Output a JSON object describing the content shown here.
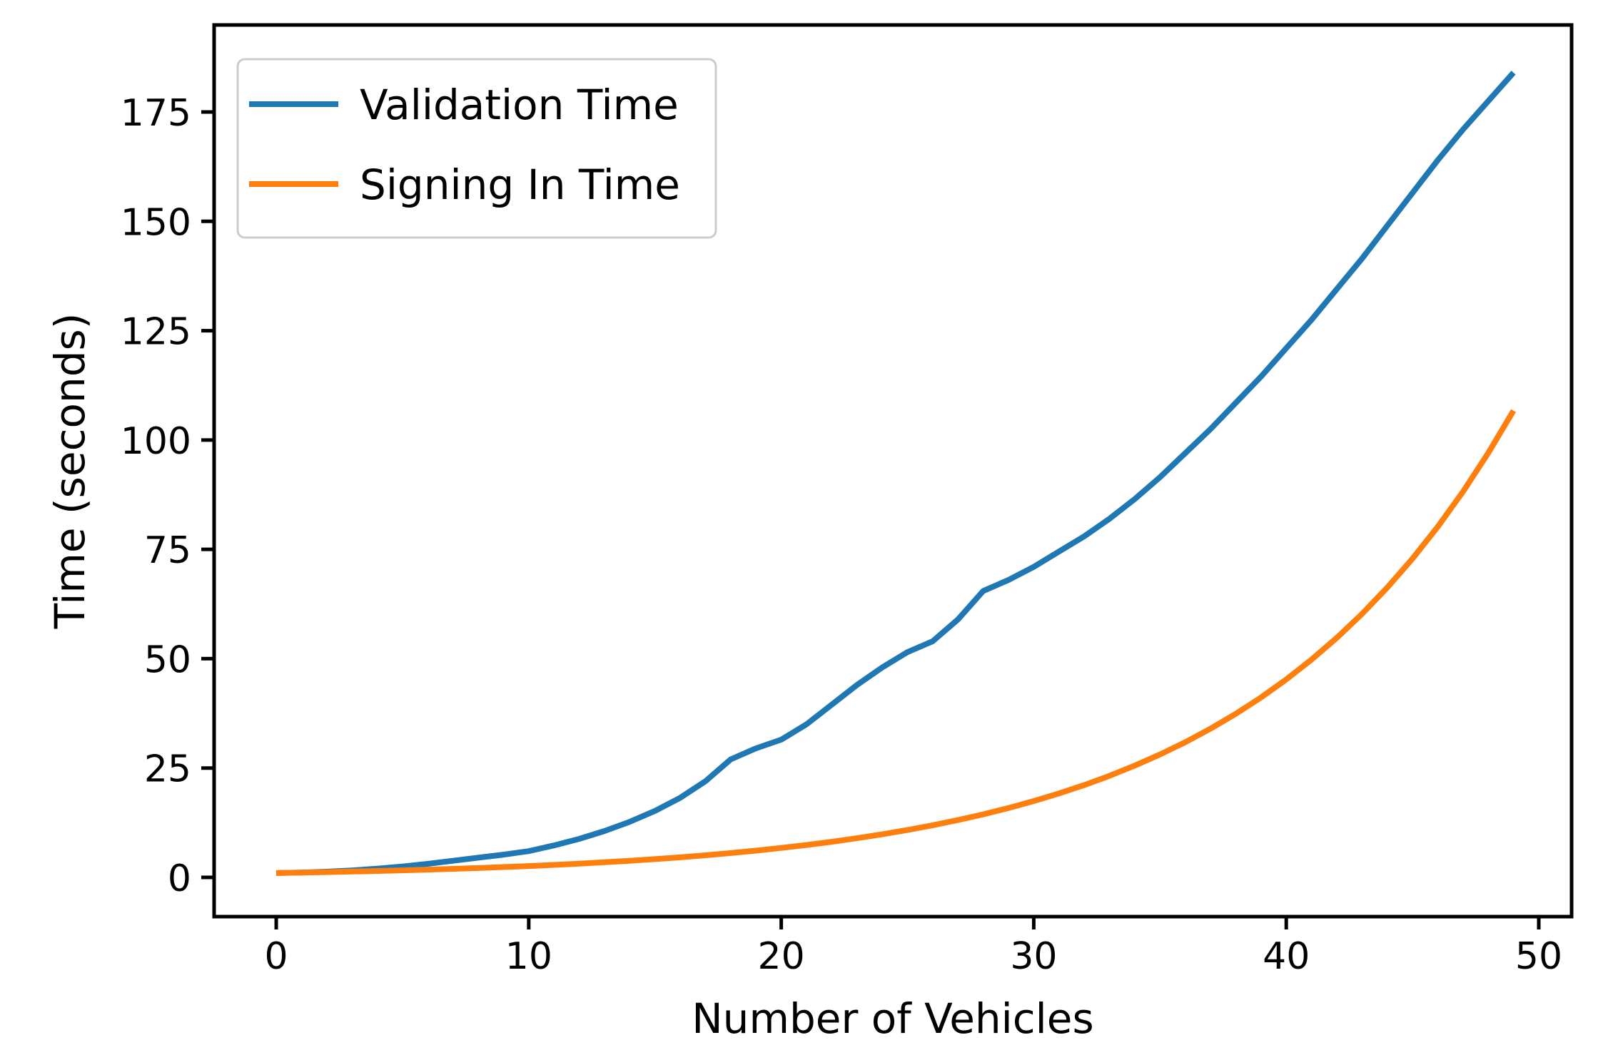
{
  "figure": {
    "background": "#ffffff",
    "text_color": "#000000"
  },
  "chart_data": {
    "type": "line",
    "title": "",
    "xlabel": "Number of Vehicles",
    "ylabel": "Time (seconds)",
    "x_ticks": [
      0,
      10,
      20,
      30,
      40,
      50
    ],
    "y_ticks": [
      0,
      25,
      50,
      75,
      100,
      125,
      150,
      175
    ],
    "xlim": [
      -2.46,
      51.3
    ],
    "ylim": [
      -8.97,
      194.9
    ],
    "grid": false,
    "legend_position": "upper left",
    "x": [
      0,
      1,
      2,
      3,
      4,
      5,
      6,
      7,
      8,
      9,
      10,
      11,
      12,
      13,
      14,
      15,
      16,
      17,
      18,
      19,
      20,
      21,
      22,
      23,
      24,
      25,
      26,
      27,
      28,
      29,
      30,
      31,
      32,
      33,
      34,
      35,
      36,
      37,
      38,
      39,
      40,
      41,
      42,
      43,
      44,
      45,
      46,
      47,
      48,
      49
    ],
    "series": [
      {
        "name": "Validation Time",
        "color": "#1f77b4",
        "values": [
          1.0,
          1.1,
          1.3,
          1.6,
          2.0,
          2.5,
          3.1,
          3.8,
          4.5,
          5.2,
          6.0,
          7.3,
          8.8,
          10.6,
          12.7,
          15.2,
          18.2,
          22.0,
          27.0,
          29.5,
          31.5,
          35.0,
          39.5,
          44.0,
          48.0,
          51.5,
          54.0,
          59.0,
          65.5,
          68.0,
          71.0,
          74.5,
          78.0,
          82.0,
          86.5,
          91.5,
          97.0,
          102.5,
          108.5,
          114.5,
          121.0,
          127.5,
          134.5,
          141.5,
          149.0,
          156.5,
          164.0,
          171.0,
          177.5,
          184.0
        ]
      },
      {
        "name": "Signing In Time",
        "color": "#ff7f0e",
        "values": [
          1.0,
          1.1,
          1.21,
          1.33,
          1.46,
          1.61,
          1.77,
          1.95,
          2.14,
          2.36,
          2.59,
          2.85,
          3.14,
          3.45,
          3.8,
          4.18,
          4.59,
          5.05,
          5.56,
          6.12,
          6.73,
          7.4,
          8.14,
          8.95,
          9.85,
          10.83,
          11.92,
          13.11,
          14.42,
          15.86,
          17.45,
          19.19,
          21.11,
          23.23,
          25.55,
          28.1,
          30.91,
          34.0,
          37.4,
          41.14,
          45.26,
          49.79,
          54.76,
          60.24,
          66.26,
          72.89,
          80.18,
          88.2,
          97.02,
          106.72
        ]
      }
    ]
  }
}
